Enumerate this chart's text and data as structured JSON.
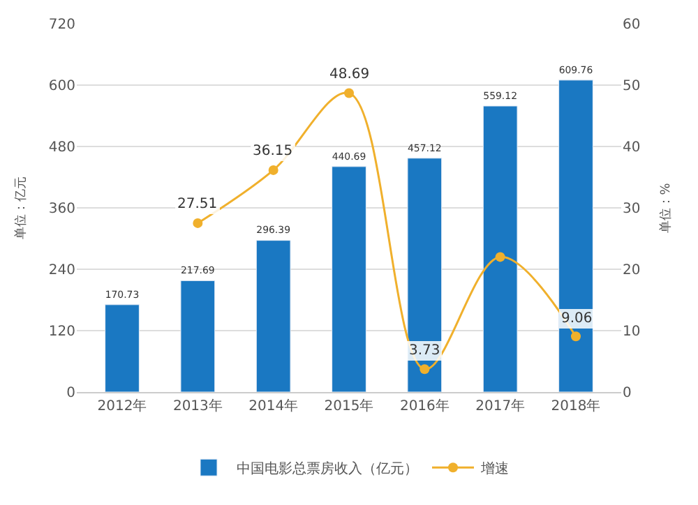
{
  "chart_data": {
    "type": "bar",
    "categories": [
      "2012年",
      "2013年",
      "2014年",
      "2015年",
      "2016年",
      "2017年",
      "2018年"
    ],
    "ylabel": "单位：亿元",
    "y2label": "单位：%",
    "series": [
      {
        "name": "中国电影总票房收入（亿元）",
        "color": "#1a78c2",
        "values": [
          170.73,
          217.69,
          296.39,
          440.69,
          457.12,
          559.12,
          609.76
        ],
        "value_labels": [
          "170.73",
          "217.69",
          "296.39",
          "440.69",
          "457.12",
          "559.12",
          "609.76"
        ]
      },
      {
        "name": "增速",
        "type": "line",
        "axis": "y2",
        "color": "#f0b02c",
        "marker": "circle",
        "values": [
          null,
          27.51,
          36.15,
          48.69,
          3.73,
          22,
          9.06
        ],
        "value_labels": [
          null,
          "27.51",
          "36.15",
          "48.69",
          "3.73",
          null,
          "9.06"
        ]
      }
    ],
    "ylim": [
      0,
      720
    ],
    "yticks": [
      0,
      120,
      240,
      360,
      480,
      600,
      720
    ],
    "y2lim": [
      0,
      60
    ],
    "y2ticks": [
      0,
      10,
      20,
      30,
      40,
      50,
      60
    ],
    "grid": "y",
    "legend": "bottom"
  }
}
